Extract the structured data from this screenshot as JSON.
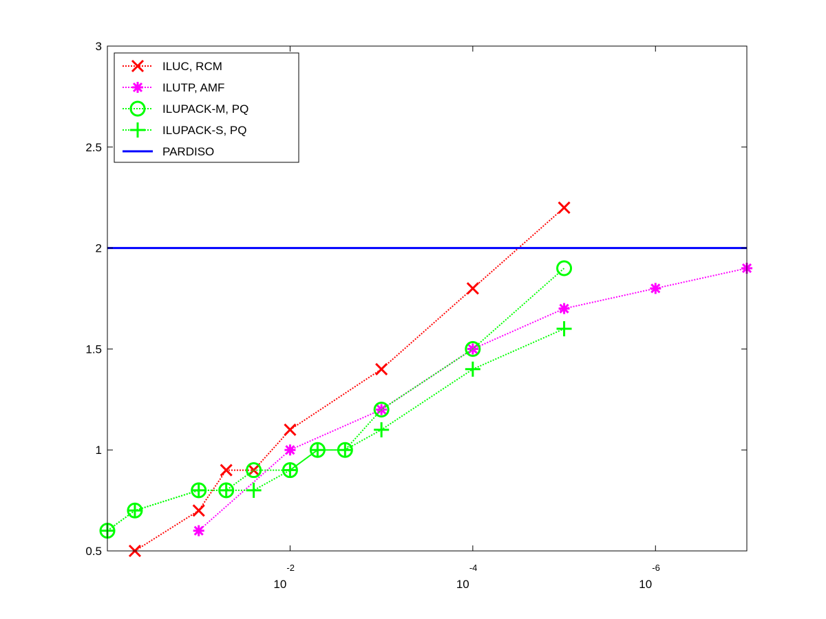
{
  "chart_data": {
    "type": "line",
    "title": "",
    "xlabel": "",
    "ylabel": "",
    "x_scale": "log",
    "x_reversed": true,
    "xlim": [
      1,
      1e-07
    ],
    "ylim": [
      0.5,
      3
    ],
    "x_ticks": [
      {
        "value": 0.01,
        "base": "10",
        "exp": "-2"
      },
      {
        "value": 0.0001,
        "base": "10",
        "exp": "-4"
      },
      {
        "value": 1e-06,
        "base": "10",
        "exp": "-6"
      }
    ],
    "y_ticks": [
      {
        "value": 0.5,
        "label": "0.5"
      },
      {
        "value": 1,
        "label": "1"
      },
      {
        "value": 1.5,
        "label": "1.5"
      },
      {
        "value": 2,
        "label": "2"
      },
      {
        "value": 2.5,
        "label": "2.5"
      },
      {
        "value": 3,
        "label": "3"
      }
    ],
    "grid": false,
    "legend_position": "top-left",
    "series": [
      {
        "name": "ILUC, RCM",
        "color": "#ff0000",
        "marker": "x",
        "line": "dotted",
        "points": [
          [
            0.5,
            0.5
          ],
          [
            0.1,
            0.7
          ],
          [
            0.05,
            0.9
          ],
          [
            0.025,
            0.9
          ],
          [
            0.01,
            1.1
          ],
          [
            0.001,
            1.4
          ],
          [
            0.0001,
            1.8
          ],
          [
            1e-05,
            2.2
          ]
        ]
      },
      {
        "name": "ILUTP, AMF",
        "color": "#ff00ff",
        "marker": "star",
        "line": "dotted",
        "points": [
          [
            0.1,
            0.6
          ],
          [
            0.01,
            1.0
          ],
          [
            0.001,
            1.2
          ],
          [
            0.0001,
            1.5
          ],
          [
            1e-05,
            1.7
          ],
          [
            1e-06,
            1.8
          ],
          [
            1e-07,
            1.9
          ]
        ]
      },
      {
        "name": "ILUPACK-M, PQ",
        "color": "#00ff00",
        "marker": "circle",
        "line": "dotted",
        "points": [
          [
            1,
            0.6
          ],
          [
            0.5,
            0.7
          ],
          [
            0.1,
            0.8
          ],
          [
            0.05,
            0.8
          ],
          [
            0.025,
            0.9
          ],
          [
            0.01,
            0.9
          ],
          [
            0.005,
            1.0
          ],
          [
            0.0025,
            1.0
          ],
          [
            0.001,
            1.2
          ],
          [
            0.0001,
            1.5
          ],
          [
            1e-05,
            1.9
          ]
        ]
      },
      {
        "name": "ILUPACK-S, PQ",
        "color": "#00ff00",
        "marker": "plus",
        "line": "dotted",
        "points": [
          [
            1,
            0.6
          ],
          [
            0.5,
            0.7
          ],
          [
            0.1,
            0.8
          ],
          [
            0.05,
            0.8
          ],
          [
            0.025,
            0.8
          ],
          [
            0.01,
            0.9
          ],
          [
            0.005,
            1.0
          ],
          [
            0.0025,
            1.0
          ],
          [
            0.001,
            1.1
          ],
          [
            0.0001,
            1.4
          ],
          [
            1e-05,
            1.6
          ]
        ]
      },
      {
        "name": "PARDISO",
        "color": "#0000ff",
        "marker": "none",
        "line": "solid",
        "constant": 2.0
      }
    ]
  }
}
